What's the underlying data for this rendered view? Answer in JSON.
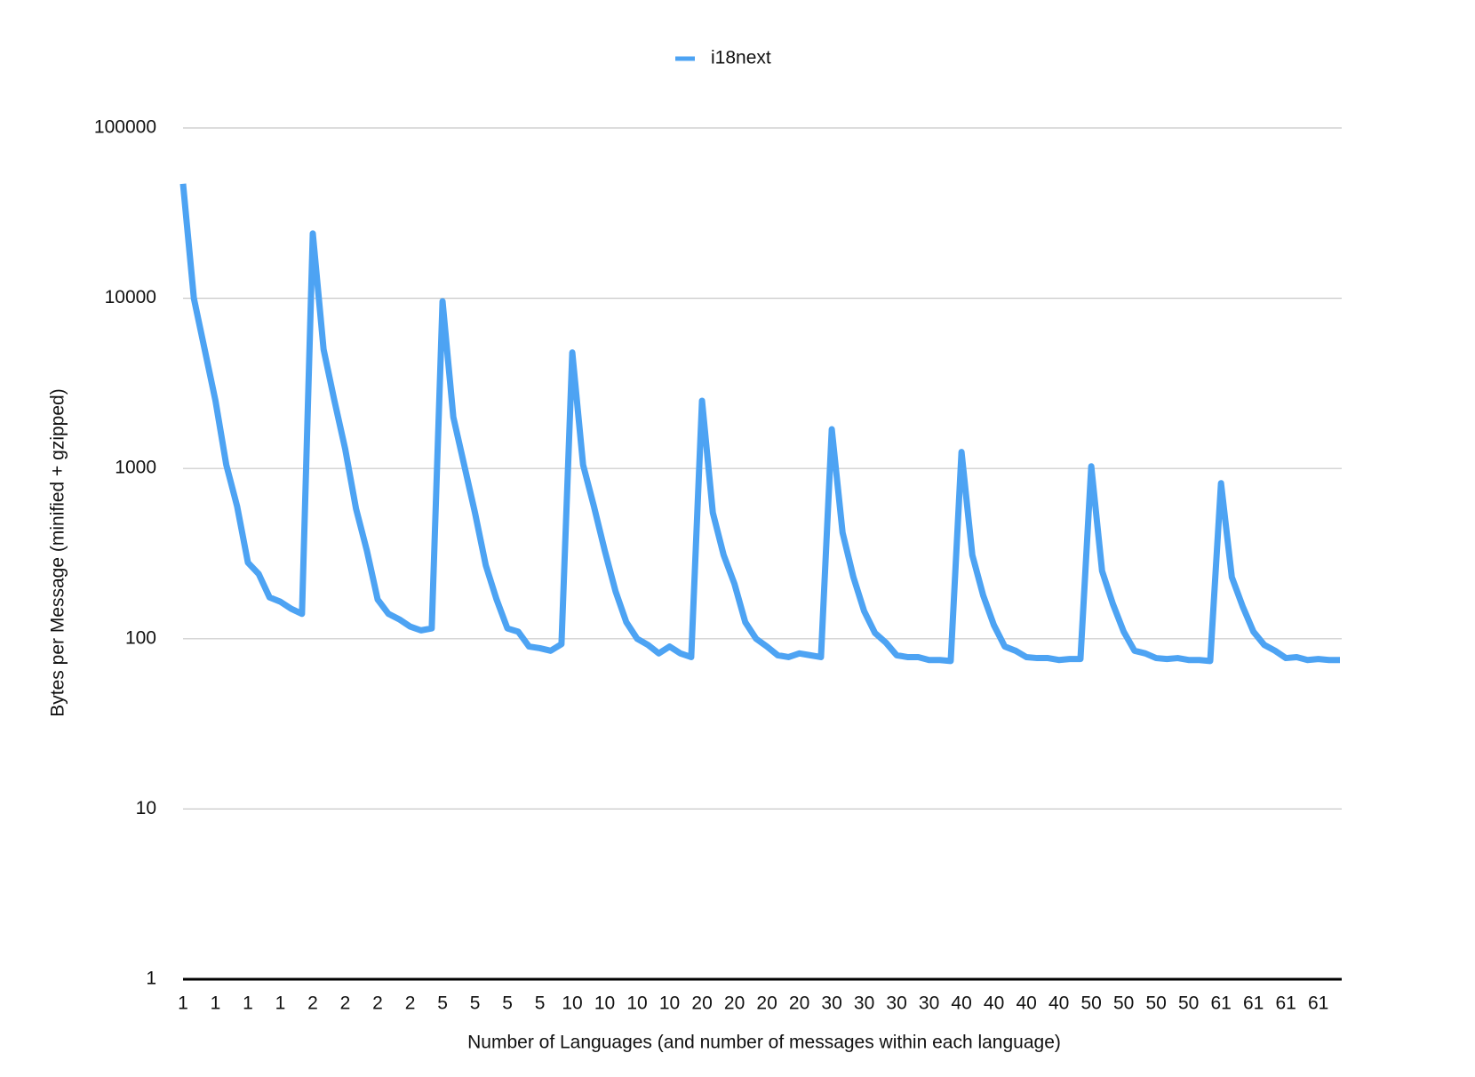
{
  "chart_data": {
    "type": "line",
    "x_label": "Number of Languages (and number of messages within each language)",
    "y_label": "Bytes per Message (minified + gzipped)",
    "categories": [
      "1",
      null,
      null,
      "1",
      null,
      null,
      "1",
      null,
      null,
      "1",
      null,
      null,
      "2",
      null,
      null,
      "2",
      null,
      null,
      "2",
      null,
      null,
      "2",
      null,
      null,
      "5",
      null,
      null,
      "5",
      null,
      null,
      "5",
      null,
      null,
      "5",
      null,
      null,
      "10",
      null,
      null,
      "10",
      null,
      null,
      "10",
      null,
      null,
      "10",
      null,
      null,
      "20",
      null,
      null,
      "20",
      null,
      null,
      "20",
      null,
      null,
      "20",
      null,
      null,
      "30",
      null,
      null,
      "30",
      null,
      null,
      "30",
      null,
      null,
      "30",
      null,
      null,
      "40",
      null,
      null,
      "40",
      null,
      null,
      "40",
      null,
      null,
      "40",
      null,
      null,
      "50",
      null,
      null,
      "50",
      null,
      null,
      "50",
      null,
      null,
      "50",
      null,
      null,
      "61",
      null,
      null,
      "61",
      null,
      null,
      "61",
      null,
      null,
      "61",
      null,
      null
    ],
    "series": [
      {
        "name": "i18next",
        "color": "#4da3f3",
        "values": [
          47000,
          10000,
          5000,
          2500,
          1050,
          600,
          280,
          240,
          175,
          165,
          150,
          140,
          24000,
          5000,
          2500,
          1300,
          580,
          330,
          170,
          140,
          130,
          118,
          112,
          115,
          9600,
          2000,
          1050,
          550,
          270,
          170,
          115,
          110,
          90,
          88,
          85,
          93,
          4800,
          1050,
          600,
          330,
          190,
          125,
          100,
          92,
          82,
          90,
          82,
          78,
          2500,
          550,
          310,
          210,
          125,
          100,
          90,
          80,
          78,
          82,
          80,
          78,
          1700,
          420,
          230,
          145,
          108,
          95,
          80,
          78,
          78,
          75,
          75,
          74,
          1250,
          310,
          180,
          120,
          90,
          85,
          78,
          77,
          77,
          75,
          76,
          76,
          1030,
          250,
          160,
          110,
          85,
          82,
          77,
          76,
          77,
          75,
          75,
          74,
          820,
          230,
          155,
          110,
          92,
          85,
          77,
          78,
          75,
          76,
          75,
          75
        ]
      }
    ],
    "yscale": "log",
    "ylim": [
      1,
      100000
    ],
    "yticks": [
      1,
      10,
      100,
      1000,
      10000,
      100000
    ],
    "grid": true,
    "legend": "top"
  }
}
